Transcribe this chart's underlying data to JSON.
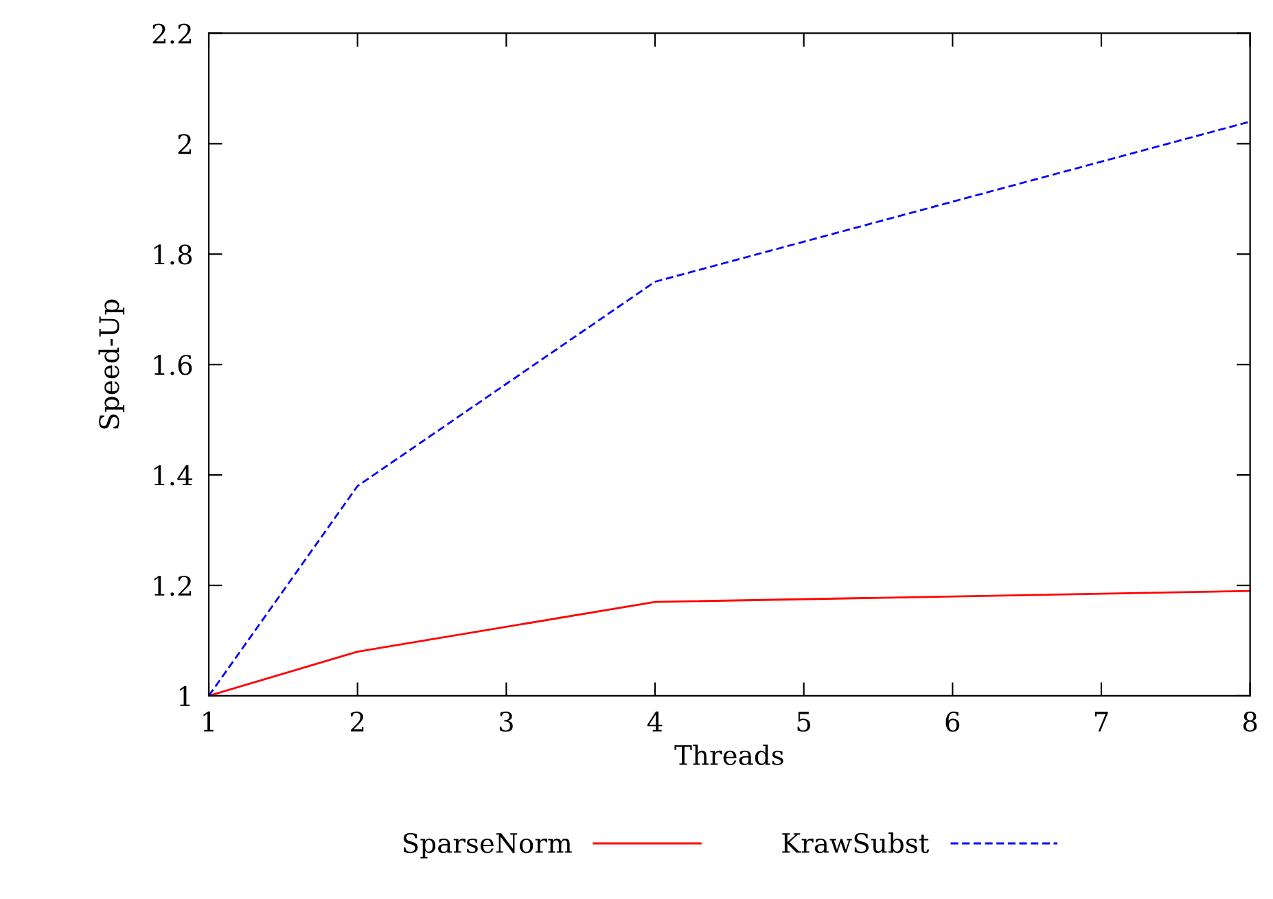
{
  "chart_data": {
    "type": "line",
    "xlabel": "Threads",
    "ylabel": "Speed-Up",
    "x": [
      1,
      2,
      4,
      8
    ],
    "series": [
      {
        "name": "SparseNorm",
        "color": "#ff0000",
        "values": [
          1,
          1.08,
          1.17,
          1.19
        ],
        "line_style": "solid"
      },
      {
        "name": "KrawSubst",
        "color": "#0000ff",
        "values": [
          1,
          1.38,
          1.75,
          2.04
        ],
        "line_style": "dashed"
      }
    ],
    "xlim": [
      1,
      8
    ],
    "xticks": [
      1,
      2,
      3,
      4,
      5,
      6,
      7,
      8
    ],
    "ylim": [
      1,
      2.2
    ],
    "yticks": [
      1,
      1.2,
      1.4,
      1.6,
      1.8,
      2,
      2.2
    ],
    "grid": false,
    "legend": "bottom",
    "marker": "none"
  }
}
